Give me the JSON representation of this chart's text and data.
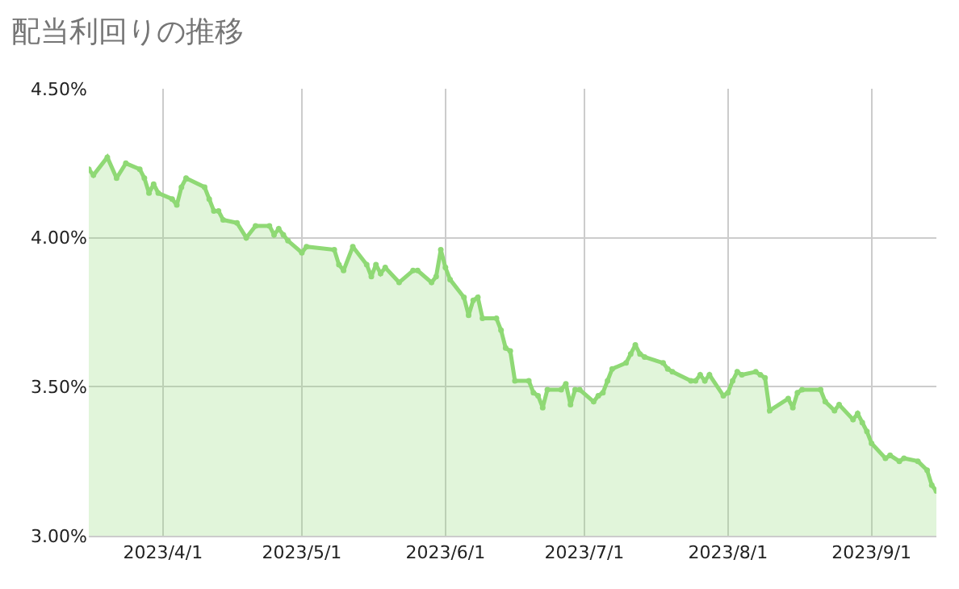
{
  "chart_data": {
    "type": "area",
    "title": "配当利回りの推移",
    "x": [
      "2023-03-16",
      "2023-03-17",
      "2023-03-20",
      "2023-03-22",
      "2023-03-24",
      "2023-03-27",
      "2023-03-28",
      "2023-03-29",
      "2023-03-30",
      "2023-03-31",
      "2023-04-03",
      "2023-04-04",
      "2023-04-05",
      "2023-04-06",
      "2023-04-10",
      "2023-04-11",
      "2023-04-12",
      "2023-04-13",
      "2023-04-14",
      "2023-04-17",
      "2023-04-19",
      "2023-04-21",
      "2023-04-24",
      "2023-04-25",
      "2023-04-26",
      "2023-04-27",
      "2023-04-28",
      "2023-05-01",
      "2023-05-02",
      "2023-05-08",
      "2023-05-09",
      "2023-05-10",
      "2023-05-12",
      "2023-05-15",
      "2023-05-16",
      "2023-05-17",
      "2023-05-18",
      "2023-05-19",
      "2023-05-22",
      "2023-05-25",
      "2023-05-26",
      "2023-05-29",
      "2023-05-30",
      "2023-05-31",
      "2023-06-01",
      "2023-06-02",
      "2023-06-05",
      "2023-06-06",
      "2023-06-07",
      "2023-06-08",
      "2023-06-09",
      "2023-06-12",
      "2023-06-13",
      "2023-06-14",
      "2023-06-15",
      "2023-06-16",
      "2023-06-19",
      "2023-06-20",
      "2023-06-21",
      "2023-06-22",
      "2023-06-23",
      "2023-06-26",
      "2023-06-27",
      "2023-06-28",
      "2023-06-29",
      "2023-06-30",
      "2023-07-03",
      "2023-07-04",
      "2023-07-05",
      "2023-07-06",
      "2023-07-07",
      "2023-07-10",
      "2023-07-11",
      "2023-07-12",
      "2023-07-13",
      "2023-07-14",
      "2023-07-18",
      "2023-07-19",
      "2023-07-20",
      "2023-07-24",
      "2023-07-25",
      "2023-07-26",
      "2023-07-27",
      "2023-07-28",
      "2023-07-31",
      "2023-08-01",
      "2023-08-02",
      "2023-08-03",
      "2023-08-04",
      "2023-08-07",
      "2023-08-08",
      "2023-08-09",
      "2023-08-10",
      "2023-08-14",
      "2023-08-15",
      "2023-08-16",
      "2023-08-17",
      "2023-08-21",
      "2023-08-22",
      "2023-08-24",
      "2023-08-25",
      "2023-08-28",
      "2023-08-29",
      "2023-08-30",
      "2023-08-31",
      "2023-09-01",
      "2023-09-04",
      "2023-09-05",
      "2023-09-07",
      "2023-09-08",
      "2023-09-11",
      "2023-09-13",
      "2023-09-14",
      "2023-09-15"
    ],
    "series": [
      {
        "color": "#8fd975",
        "values": [
          4.23,
          4.21,
          4.27,
          4.2,
          4.25,
          4.23,
          4.2,
          4.15,
          4.18,
          4.15,
          4.13,
          4.11,
          4.17,
          4.2,
          4.17,
          4.13,
          4.09,
          4.09,
          4.06,
          4.05,
          4.0,
          4.04,
          4.04,
          4.01,
          4.03,
          4.01,
          3.99,
          3.95,
          3.97,
          3.96,
          3.91,
          3.89,
          3.97,
          3.91,
          3.87,
          3.91,
          3.88,
          3.9,
          3.85,
          3.89,
          3.89,
          3.85,
          3.87,
          3.96,
          3.9,
          3.86,
          3.8,
          3.74,
          3.79,
          3.8,
          3.73,
          3.73,
          3.69,
          3.63,
          3.62,
          3.52,
          3.52,
          3.48,
          3.47,
          3.43,
          3.49,
          3.49,
          3.51,
          3.44,
          3.49,
          3.49,
          3.45,
          3.47,
          3.48,
          3.52,
          3.56,
          3.58,
          3.61,
          3.64,
          3.61,
          3.6,
          3.58,
          3.56,
          3.55,
          3.52,
          3.52,
          3.54,
          3.52,
          3.54,
          3.47,
          3.48,
          3.52,
          3.55,
          3.54,
          3.55,
          3.54,
          3.53,
          3.42,
          3.46,
          3.43,
          3.48,
          3.49,
          3.49,
          3.45,
          3.42,
          3.44,
          3.39,
          3.41,
          3.38,
          3.35,
          3.31,
          3.26,
          3.27,
          3.25,
          3.26,
          3.25,
          3.22,
          3.17,
          3.15
        ]
      }
    ],
    "xlim": [
      "2023-03-16",
      "2023-09-15"
    ],
    "xticks": [
      {
        "value": "2023-04-01",
        "label": "2023/4/1"
      },
      {
        "value": "2023-05-01",
        "label": "2023/5/1"
      },
      {
        "value": "2023-06-01",
        "label": "2023/6/1"
      },
      {
        "value": "2023-07-01",
        "label": "2023/7/1"
      },
      {
        "value": "2023-08-01",
        "label": "2023/8/1"
      },
      {
        "value": "2023-09-01",
        "label": "2023/9/1"
      }
    ],
    "ylim": [
      3.0,
      4.5
    ],
    "yticks": [
      {
        "value": 3.0,
        "label": "3.00%"
      },
      {
        "value": 3.5,
        "label": "3.50%"
      },
      {
        "value": 4.0,
        "label": "4.00%"
      },
      {
        "value": 4.5,
        "label": "4.50%"
      }
    ],
    "grid": true,
    "marker": "circle",
    "line_style": "solid"
  }
}
